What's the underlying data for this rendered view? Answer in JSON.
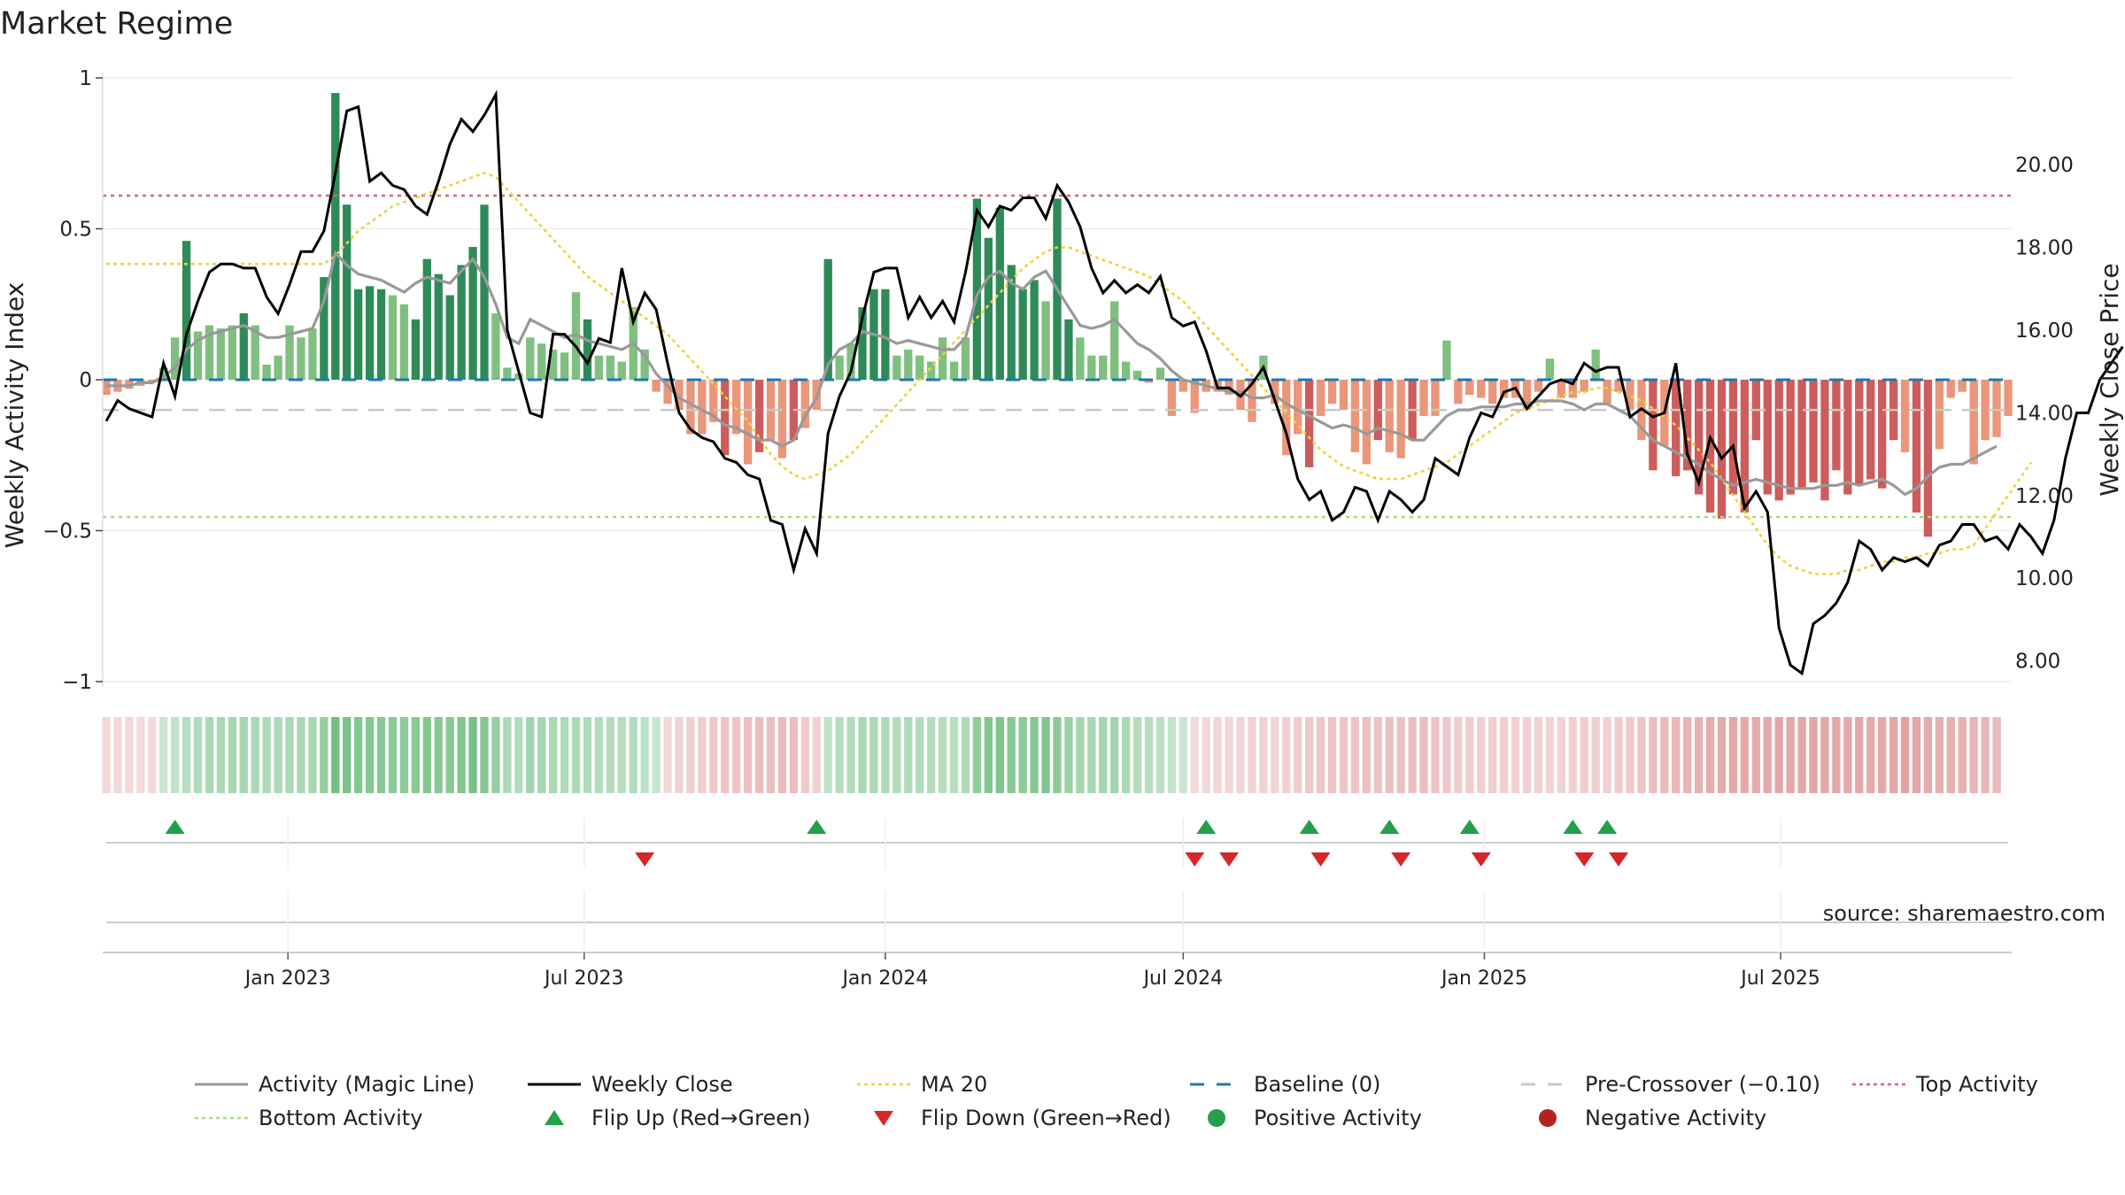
{
  "title": "Market Regime",
  "source": "source: sharemaestro.com",
  "colors": {
    "pos_strong": "#2e8b57",
    "pos_light": "#7fbf7f",
    "neg_strong": "#cd5c5c",
    "neg_light": "#e9967a",
    "close": "#000000",
    "activity": "#999999",
    "ma": "#f0d23c",
    "baseline": "#1f77b4",
    "precross": "#c8c8c8",
    "top": "#e0607a",
    "bottom": "#a8dc7c",
    "flip_up": "#22a04a",
    "flip_down": "#d62728"
  },
  "chart_data": {
    "type": "bar",
    "x_start": "2022-09-12",
    "x_step_days": 7,
    "yleft": {
      "label": "Weekly Activity Index",
      "lim": [
        -1,
        1
      ],
      "ticks": [
        1,
        0.5,
        0,
        -0.5,
        -1
      ],
      "tick_labels": [
        "1",
        "0.5",
        "0",
        "−0.5",
        "−1"
      ]
    },
    "yright": {
      "label": "Weekly Close Price",
      "lim": [
        7.5,
        22.1
      ],
      "ticks": [
        20,
        18,
        16,
        14,
        12,
        10,
        8
      ],
      "tick_labels": [
        "20.00",
        "18.00",
        "16.00",
        "14.00",
        "12.00",
        "10.00",
        "8.00"
      ]
    },
    "xticks": [
      {
        "date": "2023-01-01",
        "label": "Jan 2023"
      },
      {
        "date": "2023-07-01",
        "label": "Jul 2023"
      },
      {
        "date": "2024-01-01",
        "label": "Jan 2024"
      },
      {
        "date": "2024-07-01",
        "label": "Jul 2024"
      },
      {
        "date": "2025-01-01",
        "label": "Jan 2025"
      },
      {
        "date": "2025-07-01",
        "label": "Jul 2025"
      }
    ],
    "levels": {
      "top": 0.61,
      "bottom": -0.455,
      "pre_crossover": -0.1,
      "baseline": 0
    },
    "activity_bars": [
      -0.05,
      -0.04,
      -0.03,
      -0.02,
      -0.01,
      0.04,
      0.14,
      0.46,
      0.16,
      0.18,
      0.17,
      0.18,
      0.22,
      0.18,
      0.05,
      0.08,
      0.18,
      0.14,
      0.17,
      0.34,
      0.95,
      0.58,
      0.3,
      0.31,
      0.3,
      0.28,
      0.25,
      0.2,
      0.4,
      0.35,
      0.28,
      0.38,
      0.44,
      0.58,
      0.22,
      0.04,
      0.02,
      0.14,
      0.12,
      0.1,
      0.09,
      0.29,
      0.2,
      0.08,
      0.08,
      0.06,
      0.24,
      0.1,
      -0.04,
      -0.08,
      -0.1,
      -0.18,
      -0.18,
      -0.14,
      -0.25,
      -0.18,
      -0.28,
      -0.24,
      -0.2,
      -0.26,
      -0.2,
      -0.16,
      -0.1,
      0.4,
      0.08,
      0.12,
      0.24,
      0.3,
      0.3,
      0.08,
      0.1,
      0.08,
      0.06,
      0.14,
      0.06,
      0.14,
      0.6,
      0.47,
      0.57,
      0.38,
      0.3,
      0.33,
      0.26,
      0.6,
      0.2,
      0.14,
      0.08,
      0.08,
      0.26,
      0.06,
      0.03,
      -0.01,
      0.04,
      -0.12,
      -0.04,
      -0.11,
      -0.04,
      -0.04,
      -0.05,
      -0.1,
      -0.14,
      0.08,
      -0.08,
      -0.25,
      -0.18,
      -0.29,
      -0.12,
      -0.08,
      -0.1,
      -0.24,
      -0.28,
      -0.2,
      -0.24,
      -0.26,
      -0.2,
      -0.12,
      -0.12,
      0.13,
      -0.08,
      -0.05,
      -0.06,
      -0.08,
      -0.06,
      -0.06,
      -0.1,
      -0.04,
      0.07,
      -0.06,
      -0.06,
      -0.04,
      0.1,
      -0.08,
      -0.04,
      -0.1,
      -0.2,
      -0.3,
      -0.22,
      -0.32,
      -0.3,
      -0.38,
      -0.44,
      -0.46,
      -0.38,
      -0.44,
      -0.2,
      -0.38,
      -0.4,
      -0.38,
      -0.36,
      -0.34,
      -0.4,
      -0.3,
      -0.38,
      -0.35,
      -0.33,
      -0.36,
      -0.2,
      -0.24,
      -0.44,
      -0.52,
      -0.23,
      -0.06,
      -0.04,
      -0.28,
      -0.2,
      -0.19,
      -0.12
    ],
    "activity_line": [
      -0.02,
      -0.02,
      -0.02,
      -0.01,
      -0.01,
      0.01,
      0.04,
      0.1,
      0.13,
      0.15,
      0.16,
      0.17,
      0.18,
      0.16,
      0.14,
      0.14,
      0.15,
      0.16,
      0.17,
      0.26,
      0.42,
      0.38,
      0.35,
      0.34,
      0.33,
      0.31,
      0.29,
      0.32,
      0.34,
      0.33,
      0.32,
      0.36,
      0.4,
      0.34,
      0.25,
      0.14,
      0.12,
      0.2,
      0.18,
      0.16,
      0.14,
      0.15,
      0.13,
      0.12,
      0.11,
      0.1,
      0.12,
      0.08,
      0.02,
      -0.02,
      -0.06,
      -0.08,
      -0.1,
      -0.12,
      -0.15,
      -0.16,
      -0.18,
      -0.2,
      -0.2,
      -0.22,
      -0.2,
      -0.12,
      -0.06,
      0.05,
      0.1,
      0.12,
      0.16,
      0.15,
      0.14,
      0.12,
      0.13,
      0.12,
      0.11,
      0.1,
      0.1,
      0.14,
      0.28,
      0.34,
      0.36,
      0.32,
      0.3,
      0.34,
      0.36,
      0.3,
      0.24,
      0.18,
      0.17,
      0.18,
      0.2,
      0.16,
      0.12,
      0.1,
      0.07,
      0.03,
      0.0,
      -0.01,
      -0.02,
      -0.03,
      -0.04,
      -0.04,
      -0.06,
      -0.06,
      -0.05,
      -0.08,
      -0.1,
      -0.12,
      -0.14,
      -0.16,
      -0.15,
      -0.16,
      -0.18,
      -0.16,
      -0.17,
      -0.18,
      -0.2,
      -0.2,
      -0.16,
      -0.12,
      -0.1,
      -0.1,
      -0.09,
      -0.09,
      -0.09,
      -0.08,
      -0.08,
      -0.07,
      -0.07,
      -0.07,
      -0.08,
      -0.1,
      -0.08,
      -0.08,
      -0.1,
      -0.12,
      -0.16,
      -0.2,
      -0.22,
      -0.24,
      -0.26,
      -0.28,
      -0.31,
      -0.33,
      -0.35,
      -0.34,
      -0.33,
      -0.34,
      -0.35,
      -0.36,
      -0.36,
      -0.36,
      -0.35,
      -0.35,
      -0.34,
      -0.35,
      -0.34,
      -0.33,
      -0.35,
      -0.38,
      -0.36,
      -0.32,
      -0.29,
      -0.28,
      -0.28,
      -0.26,
      -0.24,
      -0.22
    ],
    "close": [
      13.8,
      14.3,
      14.1,
      14.0,
      13.9,
      15.2,
      14.4,
      15.9,
      16.7,
      17.4,
      17.6,
      17.6,
      17.5,
      17.5,
      16.8,
      16.4,
      17.1,
      17.9,
      17.9,
      18.4,
      19.8,
      21.3,
      21.4,
      19.6,
      19.8,
      19.5,
      19.4,
      19.0,
      18.8,
      19.6,
      20.5,
      21.1,
      20.8,
      21.2,
      21.7,
      16.0,
      15.0,
      14.0,
      13.9,
      15.9,
      15.9,
      15.6,
      15.2,
      15.8,
      15.7,
      17.5,
      16.2,
      16.9,
      16.5,
      15.2,
      14.0,
      13.6,
      13.4,
      13.3,
      12.9,
      12.8,
      12.5,
      12.4,
      11.4,
      11.3,
      10.2,
      11.2,
      10.6,
      13.5,
      14.4,
      15.0,
      16.3,
      17.4,
      17.5,
      17.5,
      16.3,
      16.8,
      16.3,
      16.7,
      16.2,
      17.4,
      18.9,
      18.5,
      19.0,
      18.9,
      19.2,
      19.2,
      18.7,
      19.5,
      19.1,
      18.5,
      17.5,
      16.9,
      17.2,
      16.9,
      17.1,
      16.9,
      17.3,
      16.3,
      16.1,
      16.2,
      15.5,
      14.6,
      14.6,
      14.4,
      14.7,
      15.1,
      14.3,
      13.5,
      12.4,
      11.9,
      12.1,
      11.4,
      11.6,
      12.2,
      12.1,
      11.4,
      12.1,
      11.9,
      11.6,
      11.9,
      12.9,
      12.7,
      12.5,
      13.4,
      14.0,
      13.9,
      14.5,
      14.6,
      14.1,
      14.4,
      14.7,
      14.8,
      14.7,
      15.2,
      15.0,
      15.1,
      15.1,
      13.9,
      14.1,
      13.9,
      14.0,
      15.2,
      13.0,
      12.3,
      13.4,
      12.9,
      13.2,
      11.7,
      12.1,
      11.6,
      8.8,
      7.9,
      7.7,
      8.9,
      9.1,
      9.4,
      9.9,
      10.9,
      10.7,
      10.2,
      10.5,
      10.4,
      10.5,
      10.3,
      10.8,
      10.9,
      11.3,
      11.3,
      10.9,
      11.0,
      10.7,
      11.3,
      11.0,
      10.6,
      11.4,
      12.9,
      14.0,
      14.0,
      14.8,
      15.2,
      15.6
    ],
    "ma20": [
      17.6,
      17.6,
      17.6,
      17.6,
      17.6,
      17.6,
      17.6,
      17.6,
      17.6,
      17.6,
      17.6,
      17.6,
      17.6,
      17.6,
      17.6,
      17.6,
      17.6,
      17.6,
      17.6,
      17.6,
      17.8,
      18.1,
      18.4,
      18.6,
      18.8,
      19.0,
      19.1,
      19.2,
      19.3,
      19.4,
      19.5,
      19.6,
      19.7,
      19.8,
      19.7,
      19.4,
      19.1,
      18.8,
      18.5,
      18.2,
      17.9,
      17.6,
      17.3,
      17.1,
      16.9,
      16.7,
      16.5,
      16.3,
      16.1,
      15.9,
      15.6,
      15.3,
      15.0,
      14.7,
      14.4,
      14.1,
      13.8,
      13.4,
      13.0,
      12.7,
      12.5,
      12.4,
      12.5,
      12.6,
      12.8,
      13.0,
      13.3,
      13.6,
      13.9,
      14.2,
      14.5,
      14.8,
      15.1,
      15.4,
      15.7,
      16.0,
      16.3,
      16.6,
      16.9,
      17.2,
      17.5,
      17.7,
      17.9,
      18.0,
      18.0,
      17.9,
      17.8,
      17.7,
      17.6,
      17.5,
      17.4,
      17.3,
      17.1,
      16.9,
      16.7,
      16.4,
      16.1,
      15.8,
      15.5,
      15.2,
      14.9,
      14.6,
      14.3,
      14.0,
      13.7,
      13.4,
      13.1,
      12.9,
      12.7,
      12.6,
      12.5,
      12.4,
      12.4,
      12.4,
      12.5,
      12.6,
      12.7,
      12.8,
      13.0,
      13.2,
      13.4,
      13.6,
      13.8,
      14.0,
      14.1,
      14.2,
      14.3,
      14.4,
      14.5,
      14.5,
      14.6,
      14.6,
      14.5,
      14.4,
      14.3,
      14.1,
      13.9,
      13.7,
      13.4,
      13.1,
      12.8,
      12.4,
      12.0,
      11.6,
      11.2,
      10.8,
      10.5,
      10.3,
      10.2,
      10.1,
      10.1,
      10.1,
      10.2,
      10.2,
      10.3,
      10.4,
      10.4,
      10.5,
      10.5,
      10.6,
      10.6,
      10.7,
      10.7,
      10.8,
      11.2,
      11.6,
      12.0,
      12.4,
      12.8
    ],
    "flip_up": [
      6,
      62,
      96,
      105,
      112,
      119,
      128,
      131
    ],
    "flip_down": [
      47,
      95,
      98,
      106,
      113,
      120,
      129,
      132
    ],
    "legend": [
      {
        "label": "Activity (Magic Line)",
        "kind": "line",
        "color": "#999999"
      },
      {
        "label": "Weekly Close",
        "kind": "line",
        "color": "#000000"
      },
      {
        "label": "MA 20",
        "kind": "dotted",
        "color": "#f0d23c"
      },
      {
        "label": "Baseline (0)",
        "kind": "dashed",
        "color": "#1f77b4"
      },
      {
        "label": "Pre-Crossover (−0.10)",
        "kind": "dashed",
        "color": "#c8c8c8"
      },
      {
        "label": "Top Activity",
        "kind": "dotted",
        "color": "#e0607a"
      },
      {
        "label": "Bottom Activity",
        "kind": "dotted",
        "color": "#a8dc7c"
      },
      {
        "label": "Flip Up (Red→Green)",
        "kind": "tri-up",
        "color": "#22a04a"
      },
      {
        "label": "Flip Down (Green→Red)",
        "kind": "tri-down",
        "color": "#d62728"
      },
      {
        "label": "Positive Activity",
        "kind": "dot",
        "color": "#22a04a"
      },
      {
        "label": "Negative Activity",
        "kind": "dot",
        "color": "#b22222"
      }
    ]
  }
}
